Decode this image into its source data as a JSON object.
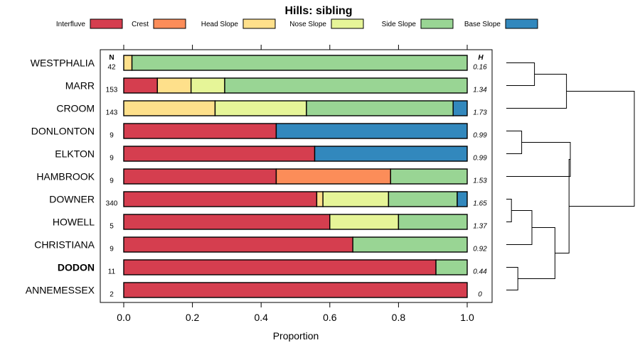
{
  "chart_data": {
    "type": "bar",
    "orientation": "horizontal",
    "stacked": true,
    "title": "Hills: sibling",
    "xlabel": "Proportion",
    "xlim": [
      0,
      1
    ],
    "x_ticks": [
      "0.0",
      "0.2",
      "0.4",
      "0.6",
      "0.8",
      "1.0"
    ],
    "n_header": "N",
    "h_header": "H",
    "legend_position": "top",
    "highlighted_category": "DODON",
    "legend": [
      {
        "name": "Interfluve",
        "color": "#D53E4F"
      },
      {
        "name": "Crest",
        "color": "#FC8D59"
      },
      {
        "name": "Head Slope",
        "color": "#FEE08B"
      },
      {
        "name": "Nose Slope",
        "color": "#E6F598"
      },
      {
        "name": "Side Slope",
        "color": "#99D594"
      },
      {
        "name": "Base Slope",
        "color": "#3288BD"
      }
    ],
    "categories": [
      "WESTPHALIA",
      "MARR",
      "CROOM",
      "DONLONTON",
      "ELKTON",
      "HAMBROOK",
      "DOWNER",
      "HOWELL",
      "CHRISTIANA",
      "DODON",
      "ANNEMESSEX"
    ],
    "n": [
      "42",
      "153",
      "143",
      "9",
      "9",
      "9",
      "340",
      "5",
      "9",
      "11",
      "2"
    ],
    "h": [
      "0.16",
      "1.34",
      "1.73",
      "0.99",
      "0.99",
      "1.53",
      "1.65",
      "1.37",
      "0.92",
      "0.44",
      "0"
    ],
    "series": [
      {
        "name": "Interfluve",
        "values": [
          0,
          0.098,
          0,
          0.444,
          0.556,
          0.444,
          0.562,
          0.6,
          0.667,
          0.909,
          1.0
        ]
      },
      {
        "name": "Crest",
        "values": [
          0,
          0,
          0,
          0,
          0,
          0.333,
          0,
          0,
          0,
          0,
          0
        ]
      },
      {
        "name": "Head Slope",
        "values": [
          0.024,
          0.098,
          0.266,
          0,
          0,
          0,
          0.018,
          0,
          0,
          0,
          0
        ]
      },
      {
        "name": "Nose Slope",
        "values": [
          0,
          0.098,
          0.266,
          0,
          0,
          0,
          0.191,
          0.2,
          0,
          0,
          0
        ]
      },
      {
        "name": "Side Slope",
        "values": [
          0.976,
          0.706,
          0.427,
          0,
          0,
          0.223,
          0.2,
          0.2,
          0.333,
          0.091,
          0
        ]
      },
      {
        "name": "Base Slope",
        "values": [
          0,
          0,
          0.041,
          0.556,
          0.444,
          0,
          0.029,
          0,
          0,
          0,
          0
        ]
      }
    ],
    "dendrogram": {
      "note": "hierarchical clustering of the categories (leaf indices refer to categories order)",
      "merges": [
        {
          "id": "m1",
          "left": 0,
          "right": 1,
          "height": 0.22
        },
        {
          "id": "m2",
          "left": "m1",
          "right": 2,
          "height": 0.47
        },
        {
          "id": "m3",
          "left": 3,
          "right": 4,
          "height": 0.12
        },
        {
          "id": "m4",
          "left": "m3",
          "right": 5,
          "height": 0.5
        },
        {
          "id": "m5",
          "left": 6,
          "right": 7,
          "height": 0.04
        },
        {
          "id": "m6",
          "left": "m5",
          "right": 8,
          "height": 0.2
        },
        {
          "id": "m7",
          "left": 9,
          "right": 10,
          "height": 0.09
        },
        {
          "id": "m8",
          "left": "m6",
          "right": "m7",
          "height": 0.38
        },
        {
          "id": "m9",
          "left": "m4",
          "right": "m8",
          "height": 0.49
        },
        {
          "id": "m10",
          "left": "m2",
          "right": "m9",
          "height": 1.0
        }
      ]
    }
  }
}
